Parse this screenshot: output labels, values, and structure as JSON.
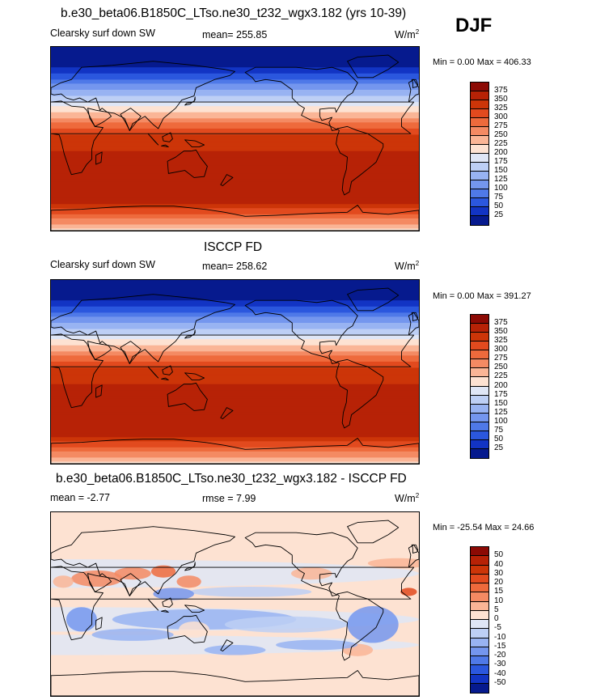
{
  "season": "DJF",
  "panels": [
    {
      "title": "b.e30_beta06.B1850C_LTso.ne30_t232_wgx3.182 (yrs 10-39)",
      "left": "Clearsky surf down SW",
      "center": "mean= 255.85",
      "units": "W/m",
      "units_sup": "2",
      "minmax": "Min =    0.00 Max = 406.33",
      "colorbar_labels": [
        "375",
        "350",
        "325",
        "300",
        "275",
        "250",
        "225",
        "200",
        "175",
        "150",
        "125",
        "100",
        "75",
        "50",
        "25"
      ],
      "colorbar_colors": [
        "#8c0a04",
        "#b72206",
        "#cc3508",
        "#e24a1e",
        "#ee6a3c",
        "#f48a63",
        "#fab596",
        "#fde2d2",
        "#dfe6f6",
        "#bdcff5",
        "#98b3f2",
        "#7496ee",
        "#4f79e8",
        "#2b57de",
        "#1234c4",
        "#061a8e"
      ]
    },
    {
      "title": "ISCCP FD",
      "left": "Clearsky surf down SW",
      "center": "mean= 258.62",
      "units": "W/m",
      "units_sup": "2",
      "minmax": "Min =    0.00 Max = 391.27",
      "colorbar_labels": [
        "375",
        "350",
        "325",
        "300",
        "275",
        "250",
        "225",
        "200",
        "175",
        "150",
        "125",
        "100",
        "75",
        "50",
        "25"
      ],
      "colorbar_colors": [
        "#8c0a04",
        "#b72206",
        "#cc3508",
        "#e24a1e",
        "#ee6a3c",
        "#f48a63",
        "#fab596",
        "#fde2d2",
        "#dfe6f6",
        "#bdcff5",
        "#98b3f2",
        "#7496ee",
        "#4f79e8",
        "#2b57de",
        "#1234c4",
        "#061a8e"
      ]
    },
    {
      "title": "b.e30_beta06.B1850C_LTso.ne30_t232_wgx3.182 - ISCCP FD",
      "left": "mean =  -2.77",
      "center": "rmse =    7.99",
      "units": "W/m",
      "units_sup": "2",
      "minmax": "Min = -25.54 Max =  24.66",
      "colorbar_labels": [
        "50",
        "40",
        "30",
        "20",
        "15",
        "10",
        "5",
        "0",
        "-5",
        "-10",
        "-15",
        "-20",
        "-30",
        "-40",
        "-50"
      ],
      "colorbar_colors": [
        "#8c0a04",
        "#b72206",
        "#cc3508",
        "#e24a1e",
        "#ee6a3c",
        "#f48a63",
        "#fab596",
        "#fde2d2",
        "#dfe6f6",
        "#bdcff5",
        "#98b3f2",
        "#7496ee",
        "#4f79e8",
        "#2b57de",
        "#1234c4",
        "#061a8e"
      ]
    }
  ]
}
